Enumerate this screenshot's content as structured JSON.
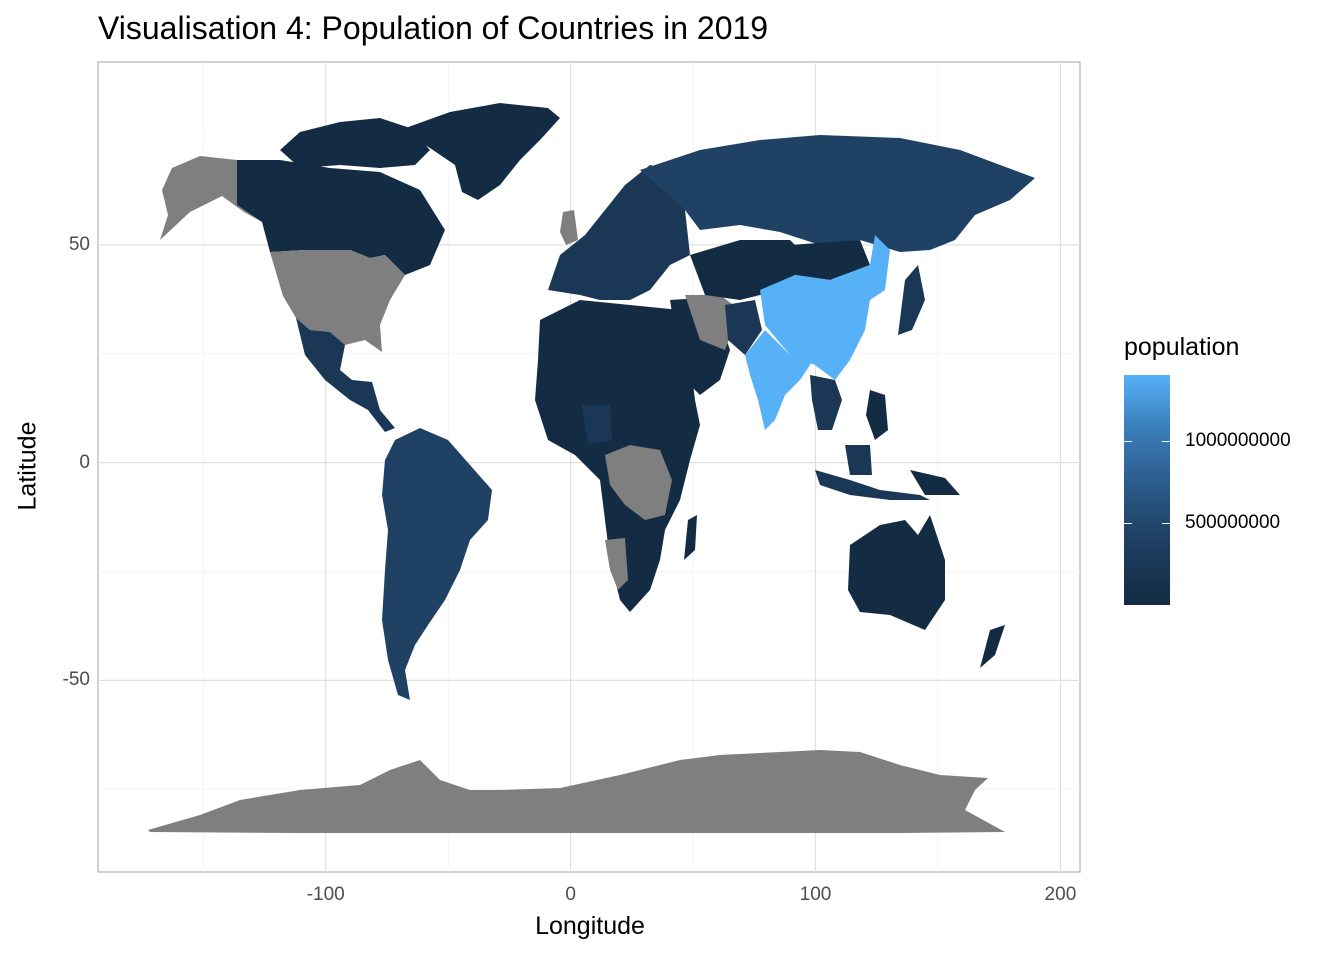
{
  "title": "Visualisation 4: Population of Countries in 2019",
  "chart_data": {
    "type": "choropleth",
    "title": "Visualisation 4: Population of Countries in 2019",
    "xlabel": "Longitude",
    "ylabel": "Latitude",
    "xlim": [
      -193,
      208
    ],
    "ylim": [
      -94,
      92
    ],
    "x_ticks": [
      "-100",
      "0",
      "100",
      "200"
    ],
    "x_tick_values": [
      -100,
      0,
      100,
      200
    ],
    "y_ticks": [
      "50",
      "0",
      "-50"
    ],
    "y_tick_values": [
      50,
      0,
      -50
    ],
    "grid": true,
    "legend": {
      "title": "population",
      "placement": "right",
      "labels": [
        "1000000000",
        "500000000"
      ],
      "label_values": [
        1000000000,
        500000000
      ],
      "low_color": "#132b43",
      "high_color": "#56b1f7",
      "missing_color": "#7f7f7f"
    }
  }
}
